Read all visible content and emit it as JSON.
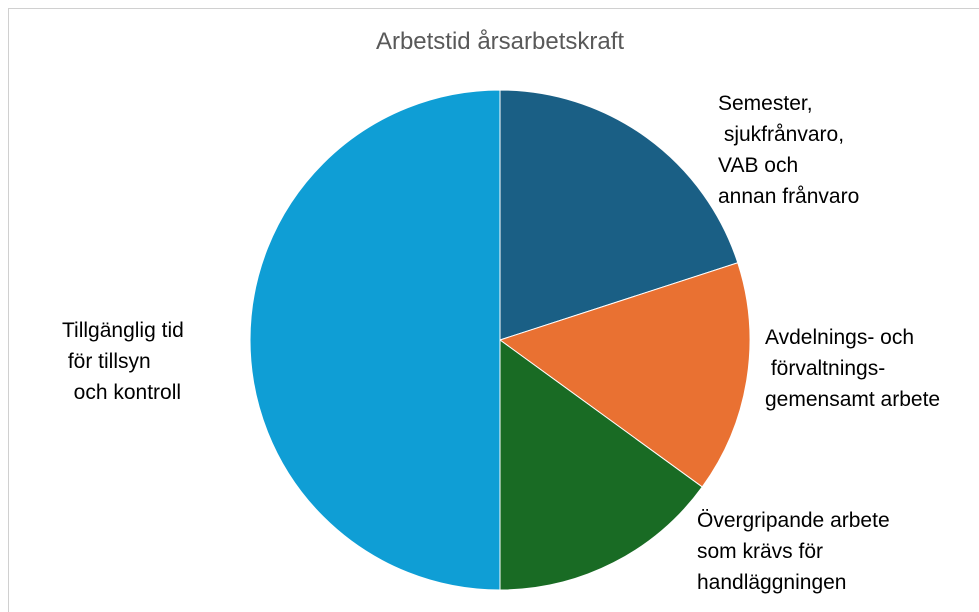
{
  "chart_data": {
    "type": "pie",
    "title": "Arbetstid årsarbetskraft",
    "categories": [
      "Semester,\n sjukfrånvaro,\nVAB och\nannan frånvaro",
      "Avdelnings- och\n förvaltnings-\ngemensamt arbete",
      "Övergripande arbete\nsom krävs för\nhandläggningen",
      "Tillgänglig tid\n för tillsyn\n  och kontroll"
    ],
    "values": [
      20,
      15,
      15,
      50
    ],
    "colors": [
      "#1a5f85",
      "#e97132",
      "#196b24",
      "#0f9ed5"
    ]
  }
}
